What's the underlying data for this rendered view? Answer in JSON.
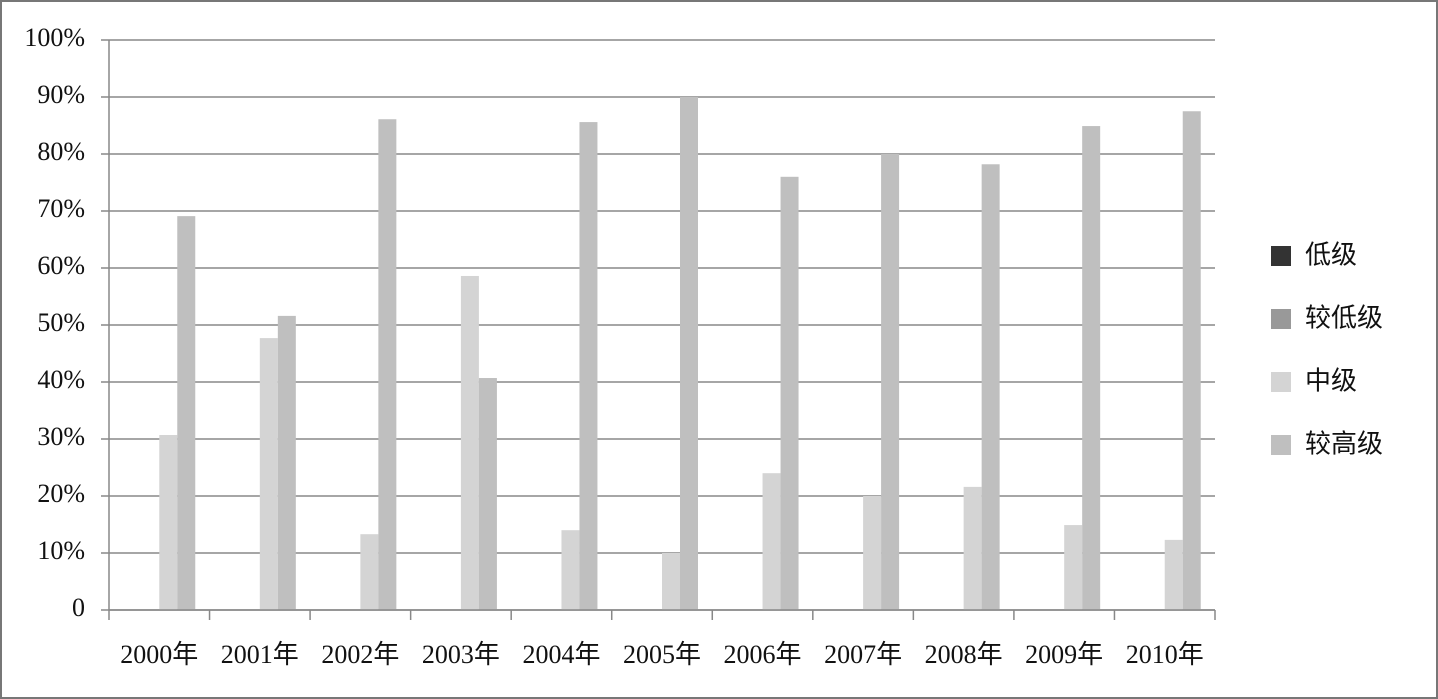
{
  "chart_data": {
    "type": "bar",
    "categories": [
      "2000年",
      "2001年",
      "2002年",
      "2003年",
      "2004年",
      "2005年",
      "2006年",
      "2007年",
      "2008年",
      "2009年",
      "2010年"
    ],
    "series": [
      {
        "name": "低级",
        "color": "#333333",
        "values": [
          0,
          0,
          0,
          0,
          0,
          0,
          0,
          0,
          0,
          0,
          0
        ]
      },
      {
        "name": "较低级",
        "color": "#999999",
        "values": [
          0,
          0,
          0,
          0,
          0,
          0,
          0,
          0,
          0,
          0,
          0
        ]
      },
      {
        "name": "中级",
        "color": "#d4d4d4",
        "values": [
          30.7,
          47.7,
          13.3,
          58.6,
          14.0,
          10.0,
          24.0,
          20.0,
          21.6,
          14.9,
          12.3
        ]
      },
      {
        "name": "较高级",
        "color": "#bfbfbf",
        "values": [
          69.1,
          51.6,
          86.1,
          40.7,
          85.6,
          90.0,
          76.0,
          80.0,
          78.2,
          84.9,
          87.5
        ]
      }
    ],
    "ylim": [
      0,
      100
    ],
    "yticks": [
      0,
      {
        "value": 10,
        "label": "10%"
      },
      {
        "value": 20,
        "label": "20%"
      },
      {
        "value": 30,
        "label": "30%"
      },
      {
        "value": 40,
        "label": "40%"
      },
      {
        "value": 50,
        "label": "50%"
      },
      {
        "value": 60,
        "label": "60%"
      },
      {
        "value": 70,
        "label": "70%"
      },
      {
        "value": 80,
        "label": "80%"
      },
      {
        "value": 90,
        "label": "90%"
      },
      {
        "value": 100,
        "label": "100%"
      }
    ],
    "grid": true,
    "legend": "right"
  }
}
